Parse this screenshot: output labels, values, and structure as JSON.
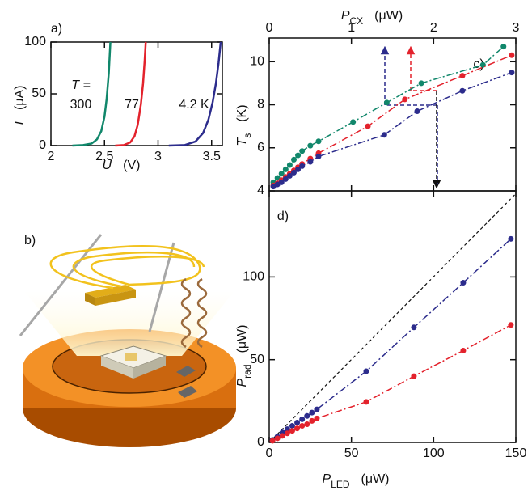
{
  "chart_data": [
    {
      "type": "line",
      "label": "a)",
      "annotation": "T =",
      "xlabel": {
        "symbol": "U",
        "unit": "(V)"
      },
      "ylabel": {
        "symbol": "I",
        "unit": "(μA)"
      },
      "xlim": [
        2,
        3.6
      ],
      "xticks": [
        2,
        2.5,
        3,
        3.5
      ],
      "ylim": [
        0,
        100
      ],
      "yticks": [
        0,
        50,
        100
      ],
      "xaxis_position": "bottom",
      "line_style": "solid",
      "markers": false,
      "series": [
        {
          "name": "300",
          "color": "#11876b",
          "x": [
            2.2,
            2.3,
            2.38,
            2.43,
            2.47,
            2.5,
            2.52,
            2.54,
            2.555
          ],
          "values": [
            0,
            0.5,
            2,
            6,
            14,
            28,
            45,
            70,
            100
          ]
        },
        {
          "name": "77",
          "color": "#e3222c",
          "x": [
            2.6,
            2.68,
            2.74,
            2.78,
            2.81,
            2.84,
            2.86,
            2.875,
            2.885
          ],
          "values": [
            0,
            0.5,
            3,
            9,
            20,
            40,
            60,
            82,
            100
          ]
        },
        {
          "name": "4.2 K",
          "color": "#2c2c8c",
          "x": [
            3.1,
            3.25,
            3.35,
            3.42,
            3.47,
            3.51,
            3.54,
            3.565,
            3.585
          ],
          "values": [
            0,
            0.5,
            4,
            12,
            25,
            42,
            60,
            80,
            100
          ]
        }
      ]
    },
    {
      "type": "line",
      "label": "c)",
      "xlabel": {
        "symbol": "P",
        "subscript": "CX",
        "unit": "(μW)"
      },
      "ylabel": {
        "symbol": "T",
        "subscript": "s",
        "unit": "(K)"
      },
      "xlim": [
        0,
        3
      ],
      "xticks": [
        0,
        1,
        2,
        3
      ],
      "ylim": [
        4,
        11.1
      ],
      "yticks": [
        4,
        6,
        8,
        10
      ],
      "xaxis_position": "top",
      "line_style": "dashdot",
      "markers": true,
      "series": [
        {
          "color": "#11876b",
          "x": [
            0.05,
            0.1,
            0.15,
            0.2,
            0.25,
            0.3,
            0.35,
            0.4,
            0.5,
            0.6,
            1.02,
            1.43,
            1.85,
            2.6,
            2.85
          ],
          "values": [
            4.4,
            4.6,
            4.8,
            5.0,
            5.2,
            5.45,
            5.65,
            5.85,
            6.1,
            6.3,
            7.2,
            8.1,
            9.0,
            9.85,
            10.7
          ]
        },
        {
          "color": "#e3222c",
          "x": [
            0.05,
            0.1,
            0.15,
            0.2,
            0.25,
            0.3,
            0.35,
            0.4,
            0.5,
            0.6,
            1.2,
            1.65,
            2.35,
            2.95
          ],
          "values": [
            4.25,
            4.35,
            4.5,
            4.65,
            4.8,
            4.95,
            5.1,
            5.25,
            5.5,
            5.75,
            7.0,
            8.25,
            9.35,
            10.3
          ]
        },
        {
          "color": "#2c2c8c",
          "x": [
            0.05,
            0.1,
            0.15,
            0.2,
            0.25,
            0.3,
            0.35,
            0.4,
            0.5,
            0.6,
            1.4,
            1.8,
            2.35,
            2.95
          ],
          "values": [
            4.2,
            4.3,
            4.4,
            4.55,
            4.7,
            4.85,
            5.0,
            5.15,
            5.35,
            5.6,
            6.6,
            7.7,
            8.65,
            9.5
          ]
        }
      ]
    },
    {
      "type": "line",
      "label": "d)",
      "xlabel": {
        "symbol": "P",
        "subscript": "LED",
        "unit": "(μW)"
      },
      "ylabel": {
        "symbol": "P",
        "subscript": "rad",
        "unit": "(μW)"
      },
      "xlim": [
        0,
        150
      ],
      "xticks": [
        0,
        50,
        100,
        150
      ],
      "ylim": [
        0,
        152
      ],
      "yticks": [
        0,
        50,
        100
      ],
      "xaxis_position": "bottom",
      "line_style": "dashdot",
      "markers": true,
      "series": [
        {
          "color": "#2c2c8c",
          "x": [
            2,
            5,
            8,
            11,
            14,
            17,
            20,
            23,
            26,
            29,
            59,
            88,
            118,
            147
          ],
          "values": [
            1.5,
            3.5,
            6,
            8,
            10,
            12,
            14,
            16,
            18,
            20,
            43,
            69.5,
            96.5,
            123
          ]
        },
        {
          "color": "#e3222c",
          "x": [
            2,
            5,
            8,
            11,
            14,
            17,
            20,
            23,
            26,
            29,
            59,
            88,
            118,
            147
          ],
          "values": [
            1,
            2.5,
            4,
            5.5,
            7,
            8.5,
            10,
            11,
            13,
            14.5,
            24.5,
            40,
            55.5,
            71
          ]
        }
      ]
    }
  ],
  "illustration": {
    "label": "b)"
  }
}
